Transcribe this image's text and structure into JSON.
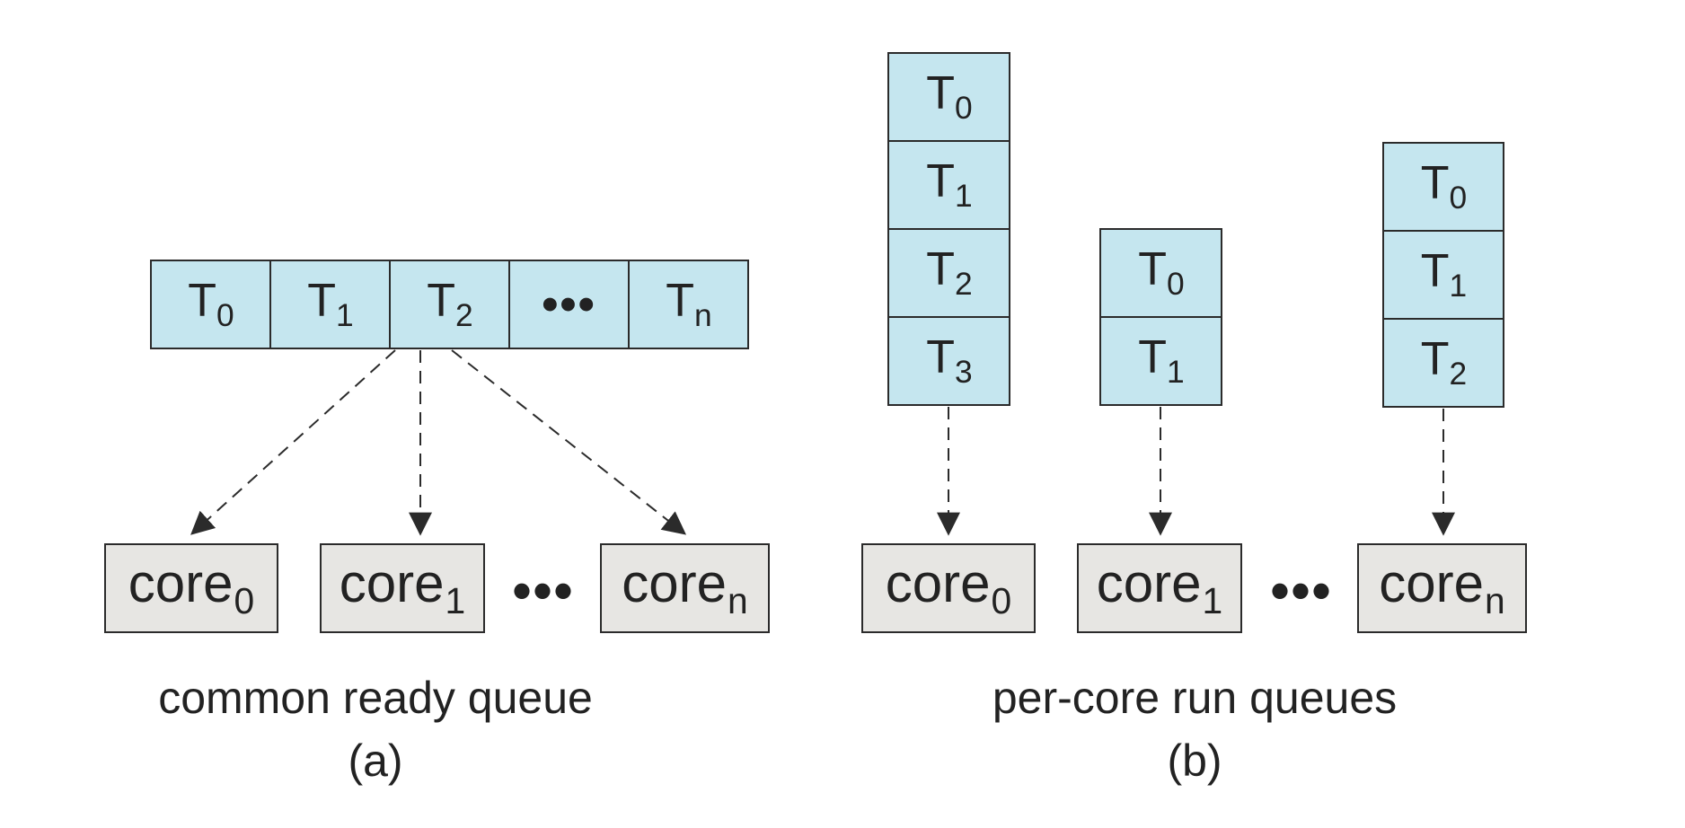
{
  "panel_a": {
    "queue": [
      {
        "letter": "T",
        "sub": "0"
      },
      {
        "letter": "T",
        "sub": "1"
      },
      {
        "letter": "T",
        "sub": "2"
      },
      {
        "text": "•••"
      },
      {
        "letter": "T",
        "sub": "n"
      }
    ],
    "cores": [
      {
        "word": "core",
        "sub": "0"
      },
      {
        "word": "core",
        "sub": "1"
      },
      {
        "word": "core",
        "sub": "n"
      }
    ],
    "ellipsis": "•••",
    "caption": "common ready queue",
    "label": "(a)"
  },
  "panel_b": {
    "queues": [
      [
        {
          "letter": "T",
          "sub": "0"
        },
        {
          "letter": "T",
          "sub": "1"
        },
        {
          "letter": "T",
          "sub": "2"
        },
        {
          "letter": "T",
          "sub": "3"
        }
      ],
      [
        {
          "letter": "T",
          "sub": "0"
        },
        {
          "letter": "T",
          "sub": "1"
        }
      ],
      [
        {
          "letter": "T",
          "sub": "0"
        },
        {
          "letter": "T",
          "sub": "1"
        },
        {
          "letter": "T",
          "sub": "2"
        }
      ]
    ],
    "cores": [
      {
        "word": "core",
        "sub": "0"
      },
      {
        "word": "core",
        "sub": "1"
      },
      {
        "word": "core",
        "sub": "n"
      }
    ],
    "ellipsis": "•••",
    "caption": "per-core run queues",
    "label": "(b)"
  },
  "colors": {
    "task_fill": "#c5e6ef",
    "core_fill": "#e7e6e3",
    "line": "#2b2b2b",
    "text": "#222222"
  }
}
